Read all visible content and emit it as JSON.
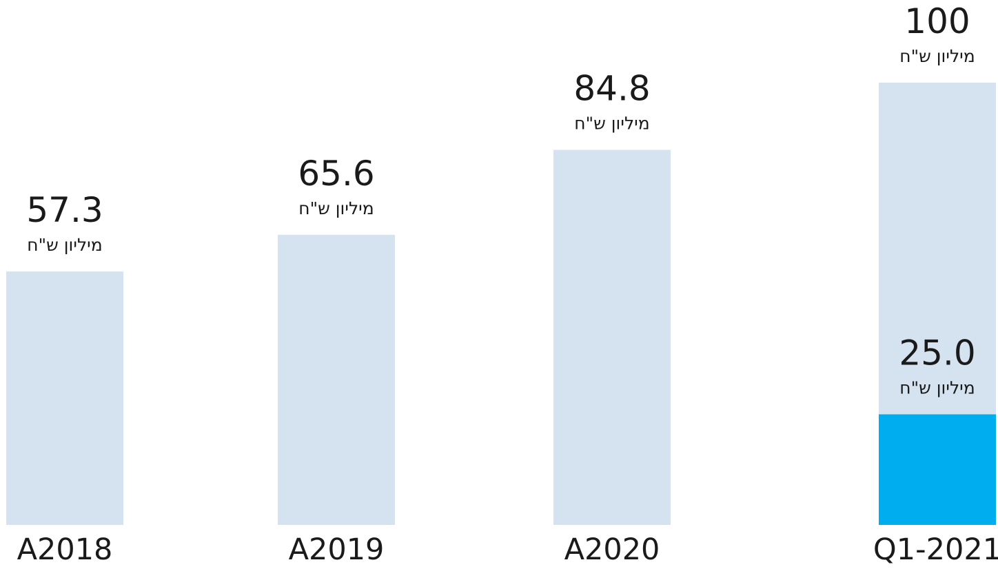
{
  "chart_data": {
    "type": "bar",
    "title": "",
    "xlabel": "",
    "ylabel": "",
    "categories": [
      "A2018",
      "A2019",
      "A2020",
      "Q1-2021"
    ],
    "values": [
      57.3,
      65.6,
      84.8,
      100
    ],
    "value_labels": [
      "57.3",
      "65.6",
      "84.8",
      "100"
    ],
    "unit_label": "מיליון ש\"ח",
    "highlight": {
      "category": "Q1-2021",
      "value": 25.0,
      "value_label": "25.0",
      "unit_label": "מיליון ש\"ח"
    },
    "colors": {
      "bar": "#d5e2ef",
      "highlight": "#00aeef",
      "text": "#1a1a1a"
    },
    "ylim": [
      0,
      100
    ],
    "grid": false,
    "legend": "none"
  }
}
